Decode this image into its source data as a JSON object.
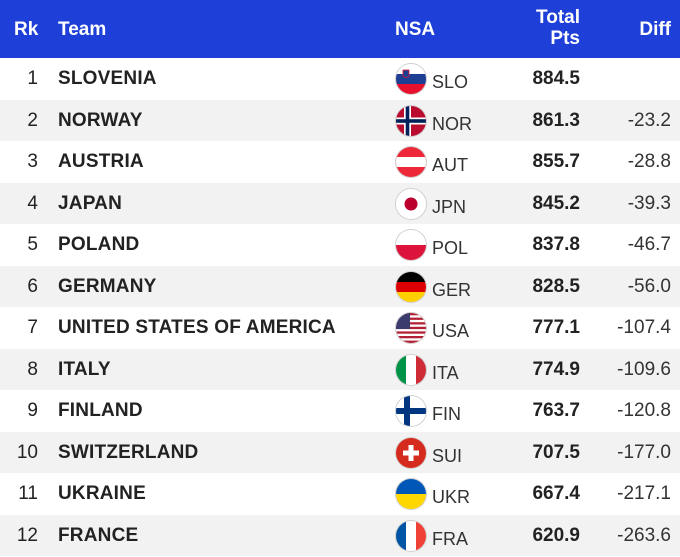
{
  "header": {
    "rk": "Rk",
    "team": "Team",
    "nsa": "NSA",
    "total_line1": "Total",
    "total_line2": "Pts",
    "diff": "Diff"
  },
  "rows": [
    {
      "rk": "1",
      "team": "SLOVENIA",
      "code": "SLO",
      "pts": "884.5",
      "diff": "",
      "flag": "slovenia-flag-icon"
    },
    {
      "rk": "2",
      "team": "NORWAY",
      "code": "NOR",
      "pts": "861.3",
      "diff": "-23.2",
      "flag": "norway-flag-icon"
    },
    {
      "rk": "3",
      "team": "AUSTRIA",
      "code": "AUT",
      "pts": "855.7",
      "diff": "-28.8",
      "flag": "austria-flag-icon"
    },
    {
      "rk": "4",
      "team": "JAPAN",
      "code": "JPN",
      "pts": "845.2",
      "diff": "-39.3",
      "flag": "japan-flag-icon"
    },
    {
      "rk": "5",
      "team": "POLAND",
      "code": "POL",
      "pts": "837.8",
      "diff": "-46.7",
      "flag": "poland-flag-icon"
    },
    {
      "rk": "6",
      "team": "GERMANY",
      "code": "GER",
      "pts": "828.5",
      "diff": "-56.0",
      "flag": "germany-flag-icon"
    },
    {
      "rk": "7",
      "team": "UNITED STATES OF AMERICA",
      "code": "USA",
      "pts": "777.1",
      "diff": "-107.4",
      "flag": "usa-flag-icon"
    },
    {
      "rk": "8",
      "team": "ITALY",
      "code": "ITA",
      "pts": "774.9",
      "diff": "-109.6",
      "flag": "italy-flag-icon"
    },
    {
      "rk": "9",
      "team": "FINLAND",
      "code": "FIN",
      "pts": "763.7",
      "diff": "-120.8",
      "flag": "finland-flag-icon"
    },
    {
      "rk": "10",
      "team": "SWITZERLAND",
      "code": "SUI",
      "pts": "707.5",
      "diff": "-177.0",
      "flag": "switzerland-flag-icon"
    },
    {
      "rk": "11",
      "team": "UKRAINE",
      "code": "UKR",
      "pts": "667.4",
      "diff": "-217.1",
      "flag": "ukraine-flag-icon"
    },
    {
      "rk": "12",
      "team": "FRANCE",
      "code": "FRA",
      "pts": "620.9",
      "diff": "-263.6",
      "flag": "france-flag-icon"
    }
  ],
  "colors": {
    "header_bg": "#1e40d8",
    "header_text": "#ffffff",
    "stripe": "#f2f2f2"
  }
}
